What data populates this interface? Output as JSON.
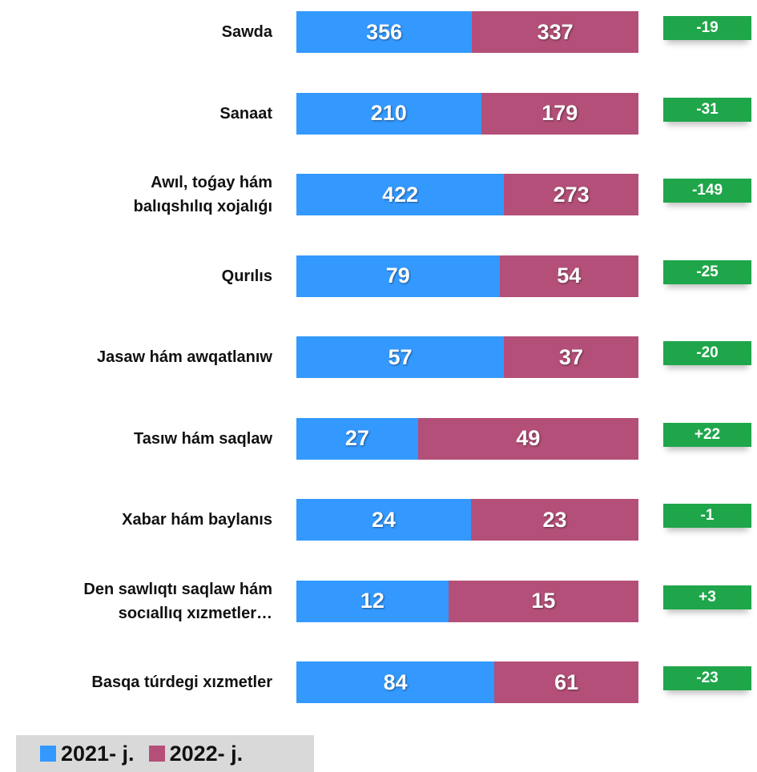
{
  "chart_data": {
    "type": "bar",
    "orientation": "horizontal",
    "stacked": true,
    "normalized": true,
    "categories": [
      "Sawda",
      "Sanaat",
      "Awıl, toǵay hám\nbalıqshılıq xojalıǵı",
      "Qurılıs",
      "Jasaw hám awqatlanıw",
      "Tasıw hám saqlaw",
      "Xabar hám baylanıs",
      "Den sawlıqtı saqlaw hám\nsocıallıq xızmetler…",
      "Basqa túrdegi xızmetler"
    ],
    "series": [
      {
        "name": "2021- j.",
        "color": "#3399ff",
        "values": [
          356,
          210,
          422,
          79,
          57,
          27,
          24,
          12,
          84
        ]
      },
      {
        "name": "2022- j.",
        "color": "#b34f78",
        "values": [
          337,
          179,
          273,
          54,
          37,
          49,
          23,
          15,
          61
        ]
      }
    ],
    "differences": [
      -19,
      -31,
      -149,
      -25,
      -20,
      22,
      -1,
      3,
      -23
    ],
    "difference_labels": [
      "-19",
      "-31",
      "-149",
      "-25",
      "-20",
      "+22",
      "-1",
      "+3",
      "-23"
    ],
    "difference_color": "#1fa64a",
    "legend": "bottom-left"
  }
}
